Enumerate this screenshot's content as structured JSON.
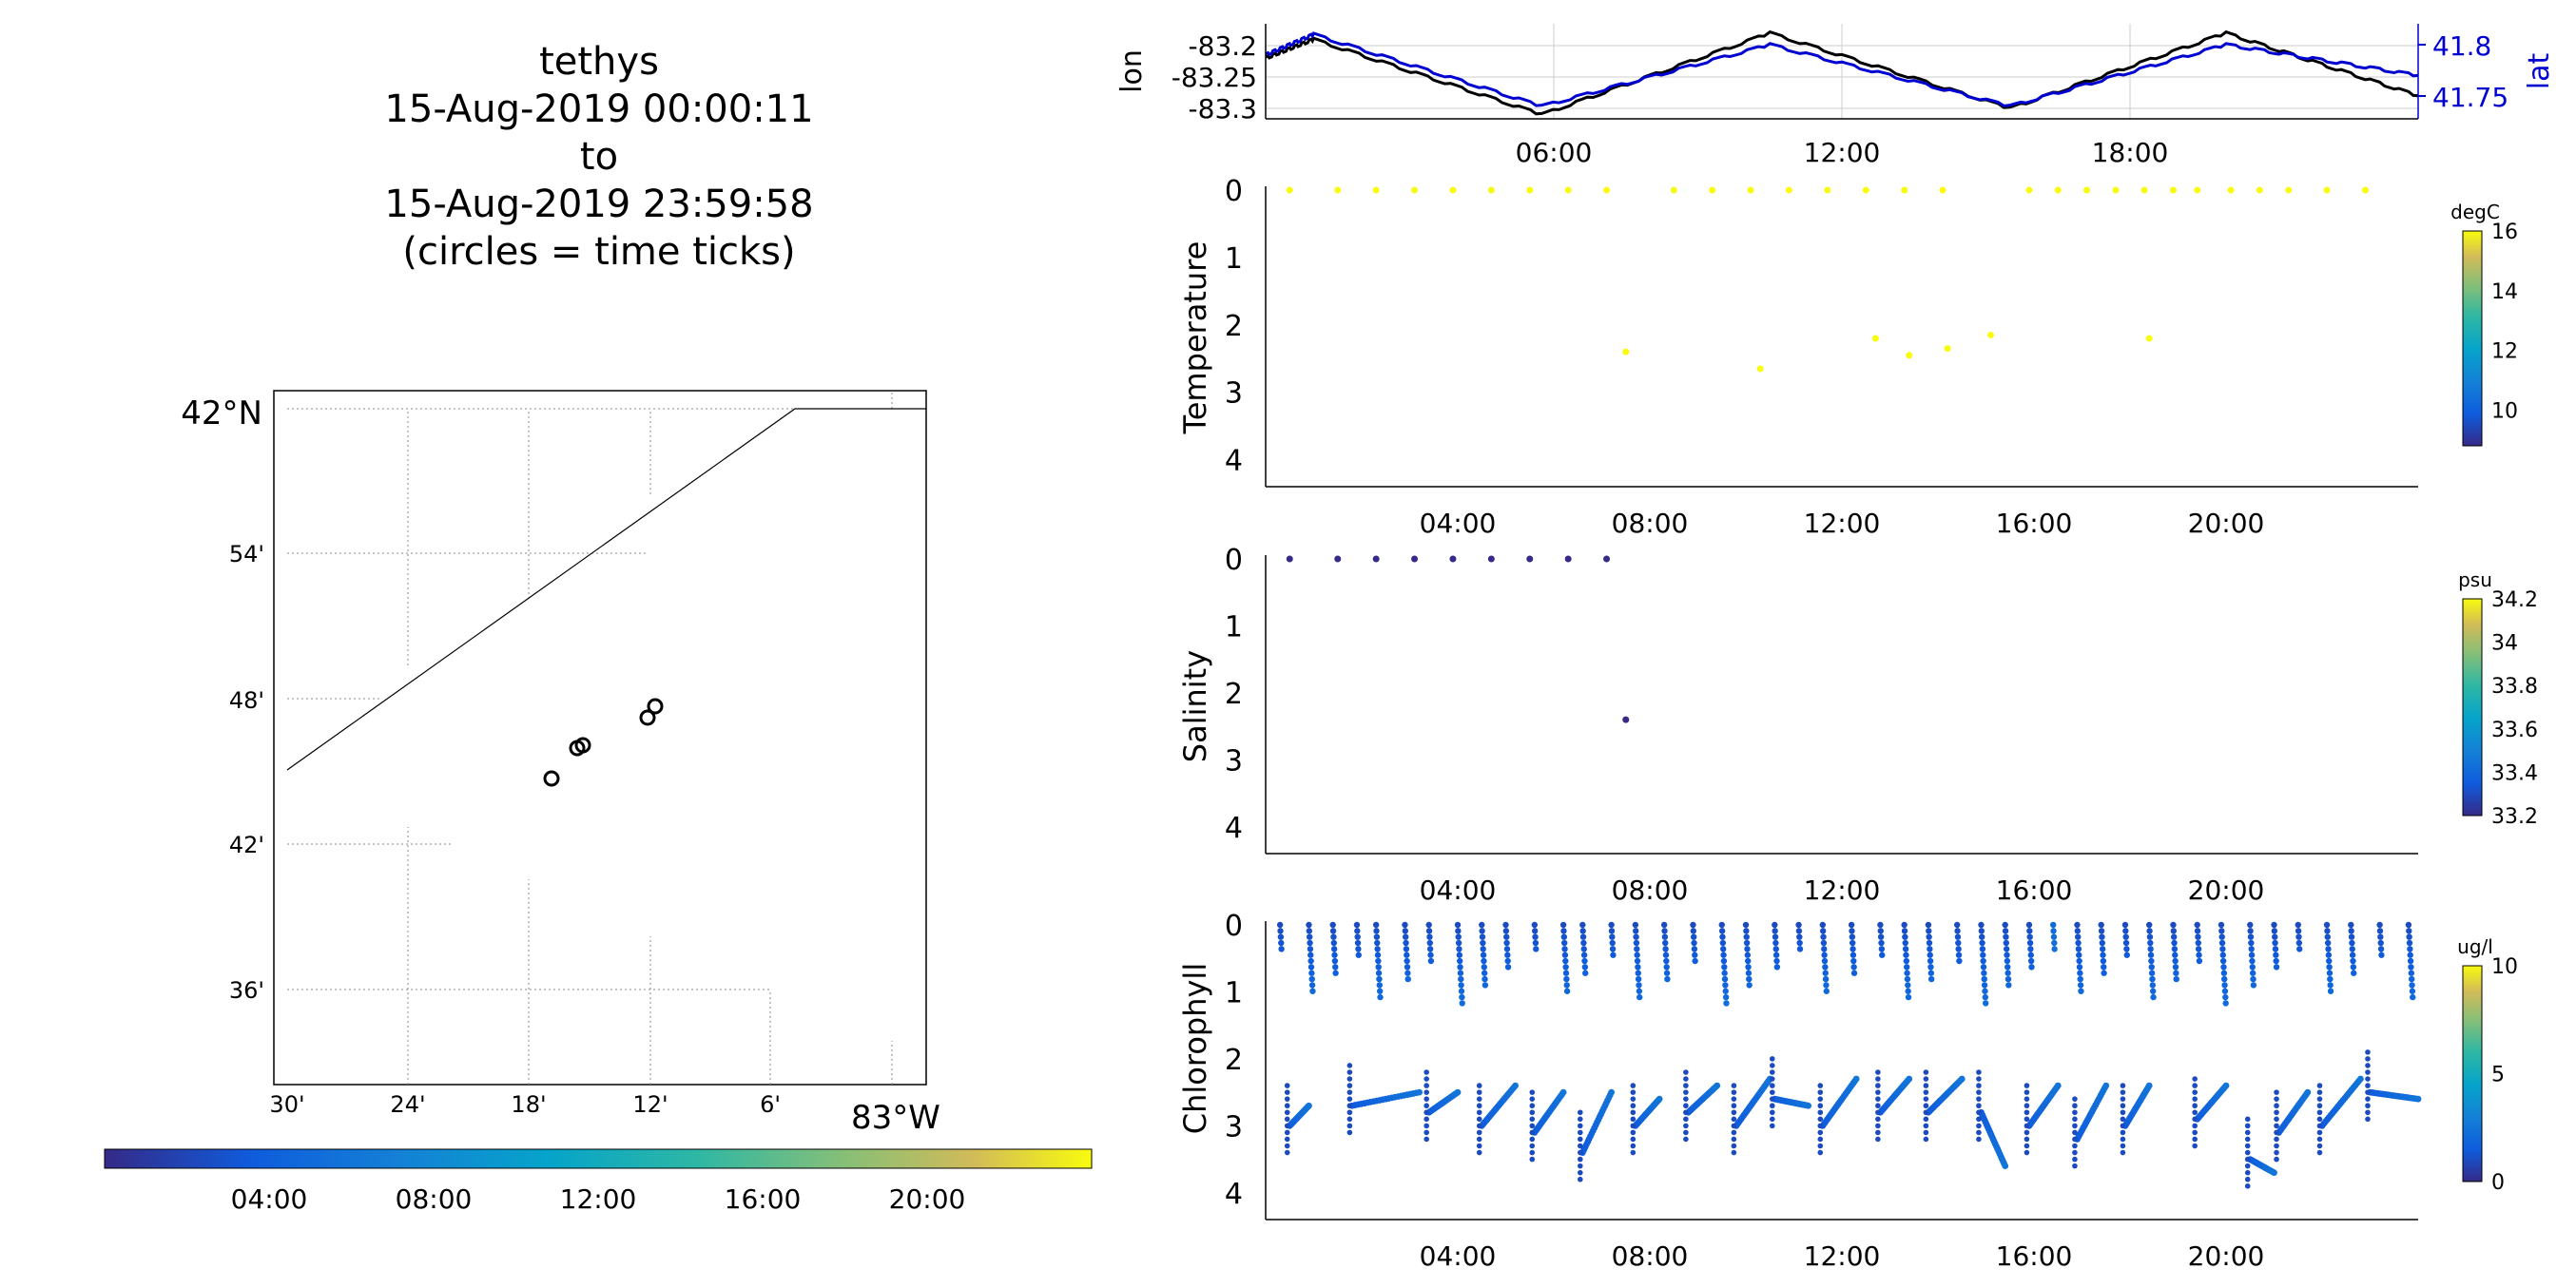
{
  "title_lines": [
    "tethys",
    "15-Aug-2019 00:00:11",
    "to",
    "15-Aug-2019 23:59:58",
    "(circles = time ticks)"
  ],
  "map": {
    "lat_labels": [
      "42°N",
      "54'",
      "48'",
      "42'",
      "36'"
    ],
    "lon_labels": [
      "30'",
      "24'",
      "18'",
      "12'",
      "6'",
      "83°W"
    ],
    "colorbar_ticks": [
      "04:00",
      "08:00",
      "12:00",
      "16:00",
      "20:00"
    ],
    "colorbar_colormap": "parula",
    "circles": [
      {
        "lon": -83.311,
        "lat": 41.746
      },
      {
        "lon": -83.305,
        "lat": 41.767
      },
      {
        "lon": -83.302,
        "lat": 41.769
      },
      {
        "lon": -83.206,
        "lat": 41.784
      },
      {
        "lon": -83.202,
        "lat": 41.791
      }
    ]
  },
  "chart_data": [
    {
      "type": "line",
      "name": "track",
      "xlabel": "",
      "ylabel": "lon",
      "ylabel_right": "lat",
      "xlim": [
        "00:00",
        "24:00"
      ],
      "x_ticks": [
        "06:00",
        "12:00",
        "18:00"
      ],
      "y_left_ticks": [
        "-83.2",
        "-83.25",
        "-83.3"
      ],
      "y_right_ticks": [
        "41.8",
        "41.75"
      ],
      "series": [
        {
          "name": "lon",
          "color": "#000000",
          "x": [
            "00:00",
            "01:00",
            "05:45",
            "10:30",
            "15:30",
            "20:00",
            "24:00"
          ],
          "y": [
            -83.22,
            -83.19,
            -83.31,
            -83.18,
            -83.3,
            -83.18,
            -83.28
          ]
        },
        {
          "name": "lat",
          "color": "#0000d0",
          "x": [
            "00:00",
            "01:00",
            "05:45",
            "10:30",
            "15:30",
            "20:00",
            "24:00"
          ],
          "y": [
            41.79,
            41.81,
            41.74,
            41.8,
            41.74,
            41.8,
            41.77
          ]
        }
      ]
    },
    {
      "type": "scatter",
      "name": "temperature",
      "xlabel": "",
      "ylabel": "Temperature",
      "colorbar_label": "degC",
      "colorbar_ticks": [
        "16",
        "14",
        "12",
        "10"
      ],
      "clim": [
        8.5,
        16
      ],
      "ylim": [
        4.4,
        0
      ],
      "y_ticks": [
        "0",
        "1",
        "2",
        "3",
        "4"
      ],
      "x_ticks": [
        "04:00",
        "08:00",
        "12:00",
        "16:00",
        "20:00"
      ],
      "points": [
        {
          "t": 0.5,
          "depth": 0,
          "value": 16
        },
        {
          "t": 1.5,
          "depth": 0,
          "value": 16
        },
        {
          "t": 2.3,
          "depth": 0,
          "value": 16
        },
        {
          "t": 3.1,
          "depth": 0,
          "value": 16
        },
        {
          "t": 3.9,
          "depth": 0,
          "value": 16
        },
        {
          "t": 4.7,
          "depth": 0,
          "value": 16
        },
        {
          "t": 5.5,
          "depth": 0,
          "value": 16
        },
        {
          "t": 6.3,
          "depth": 0,
          "value": 16
        },
        {
          "t": 7.1,
          "depth": 0,
          "value": 16
        },
        {
          "t": 7.5,
          "depth": 2.4,
          "value": 16
        },
        {
          "t": 8.5,
          "depth": 0,
          "value": 16
        },
        {
          "t": 9.3,
          "depth": 0,
          "value": 16
        },
        {
          "t": 10.1,
          "depth": 0,
          "value": 16
        },
        {
          "t": 10.3,
          "depth": 2.65,
          "value": 16
        },
        {
          "t": 10.9,
          "depth": 0,
          "value": 16
        },
        {
          "t": 11.7,
          "depth": 0,
          "value": 16
        },
        {
          "t": 12.5,
          "depth": 0,
          "value": 16
        },
        {
          "t": 12.7,
          "depth": 2.2,
          "value": 16
        },
        {
          "t": 13.3,
          "depth": 0,
          "value": 16
        },
        {
          "t": 13.4,
          "depth": 2.45,
          "value": 16
        },
        {
          "t": 14.1,
          "depth": 0,
          "value": 16
        },
        {
          "t": 14.2,
          "depth": 2.35,
          "value": 16
        },
        {
          "t": 15.1,
          "depth": 2.15,
          "value": 16
        },
        {
          "t": 15.9,
          "depth": 0,
          "value": 16
        },
        {
          "t": 16.5,
          "depth": 0,
          "value": 16
        },
        {
          "t": 17.1,
          "depth": 0,
          "value": 16
        },
        {
          "t": 17.7,
          "depth": 0,
          "value": 16
        },
        {
          "t": 18.3,
          "depth": 0,
          "value": 16
        },
        {
          "t": 18.4,
          "depth": 2.2,
          "value": 16
        },
        {
          "t": 18.9,
          "depth": 0,
          "value": 16
        },
        {
          "t": 19.4,
          "depth": 0,
          "value": 16
        },
        {
          "t": 20.1,
          "depth": 0,
          "value": 16
        },
        {
          "t": 20.7,
          "depth": 0,
          "value": 16
        },
        {
          "t": 21.3,
          "depth": 0,
          "value": 16
        },
        {
          "t": 22.1,
          "depth": 0,
          "value": 16
        },
        {
          "t": 22.9,
          "depth": 0,
          "value": 16
        }
      ]
    },
    {
      "type": "scatter",
      "name": "salinity",
      "xlabel": "",
      "ylabel": "Salinity",
      "colorbar_label": "psu",
      "colorbar_ticks": [
        "34.2",
        "34",
        "33.8",
        "33.6",
        "33.4",
        "33.2"
      ],
      "clim": [
        33.2,
        34.2
      ],
      "ylim": [
        4.4,
        0
      ],
      "y_ticks": [
        "0",
        "1",
        "2",
        "3",
        "4"
      ],
      "x_ticks": [
        "04:00",
        "08:00",
        "12:00",
        "16:00",
        "20:00"
      ],
      "points": [
        {
          "t": 0.5,
          "depth": 0,
          "value": 33.2
        },
        {
          "t": 1.5,
          "depth": 0,
          "value": 33.2
        },
        {
          "t": 2.3,
          "depth": 0,
          "value": 33.2
        },
        {
          "t": 3.1,
          "depth": 0,
          "value": 33.2
        },
        {
          "t": 3.9,
          "depth": 0,
          "value": 33.2
        },
        {
          "t": 4.7,
          "depth": 0,
          "value": 33.2
        },
        {
          "t": 5.5,
          "depth": 0,
          "value": 33.2
        },
        {
          "t": 6.3,
          "depth": 0,
          "value": 33.2
        },
        {
          "t": 7.1,
          "depth": 0,
          "value": 33.2
        },
        {
          "t": 7.5,
          "depth": 2.4,
          "value": 33.2
        }
      ]
    },
    {
      "type": "scatter",
      "name": "chlorophyll",
      "xlabel": "",
      "ylabel": "Chlorophyll",
      "colorbar_label": "ug/l",
      "colorbar_ticks": [
        "10",
        "5",
        "0"
      ],
      "clim": [
        0,
        10
      ],
      "ylim": [
        4.4,
        0
      ],
      "y_ticks": [
        "0",
        "1",
        "2",
        "3",
        "4"
      ],
      "x_ticks": [
        "04:00",
        "08:00",
        "12:00",
        "16:00",
        "20:00"
      ],
      "profile_times": [
        0.3,
        0.9,
        1.4,
        1.9,
        2.3,
        2.9,
        3.4,
        4.0,
        4.5,
        5.0,
        5.6,
        6.2,
        6.6,
        7.2,
        7.7,
        8.3,
        8.9,
        9.5,
        10.0,
        10.6,
        11.1,
        11.6,
        12.2,
        12.8,
        13.3,
        13.8,
        14.4,
        14.9,
        15.4,
        15.9,
        16.4,
        16.9,
        17.4,
        17.9,
        18.4,
        18.9,
        19.4,
        19.9,
        20.5,
        21.0,
        21.5,
        22.1,
        22.6,
        23.2,
        23.8
      ],
      "profile_values": [
        1,
        1,
        1,
        1,
        1,
        1,
        1,
        1,
        1,
        1,
        1,
        1,
        1,
        1,
        1,
        1,
        1,
        1,
        1,
        1,
        1,
        1,
        1,
        1,
        1,
        1,
        1,
        1,
        1,
        1,
        2,
        1,
        1,
        1,
        1,
        1,
        1,
        1,
        1,
        1,
        1,
        1,
        1,
        1,
        1
      ],
      "deep_segments": [
        {
          "t0": 0.5,
          "d0": 3.0,
          "t1": 0.9,
          "d1": 2.7
        },
        {
          "t0": 1.8,
          "d0": 2.7,
          "t1": 3.2,
          "d1": 2.5
        },
        {
          "t0": 3.4,
          "d0": 2.8,
          "t1": 4.0,
          "d1": 2.5
        },
        {
          "t0": 4.5,
          "d0": 3.0,
          "t1": 5.2,
          "d1": 2.4
        },
        {
          "t0": 5.6,
          "d0": 3.1,
          "t1": 6.2,
          "d1": 2.5
        },
        {
          "t0": 6.6,
          "d0": 3.4,
          "t1": 7.2,
          "d1": 2.5
        },
        {
          "t0": 7.7,
          "d0": 3.0,
          "t1": 8.2,
          "d1": 2.6
        },
        {
          "t0": 8.8,
          "d0": 2.8,
          "t1": 9.4,
          "d1": 2.4
        },
        {
          "t0": 9.8,
          "d0": 3.0,
          "t1": 10.5,
          "d1": 2.3
        },
        {
          "t0": 10.6,
          "d0": 2.6,
          "t1": 11.3,
          "d1": 2.7
        },
        {
          "t0": 11.6,
          "d0": 3.0,
          "t1": 12.3,
          "d1": 2.3
        },
        {
          "t0": 12.8,
          "d0": 2.8,
          "t1": 13.4,
          "d1": 2.3
        },
        {
          "t0": 13.8,
          "d0": 2.8,
          "t1": 14.5,
          "d1": 2.3
        },
        {
          "t0": 14.9,
          "d0": 2.8,
          "t1": 15.4,
          "d1": 3.6
        },
        {
          "t0": 15.9,
          "d0": 3.0,
          "t1": 16.5,
          "d1": 2.4
        },
        {
          "t0": 16.9,
          "d0": 3.2,
          "t1": 17.5,
          "d1": 2.4
        },
        {
          "t0": 17.9,
          "d0": 3.0,
          "t1": 18.4,
          "d1": 2.4
        },
        {
          "t0": 19.4,
          "d0": 2.9,
          "t1": 20.0,
          "d1": 2.4
        },
        {
          "t0": 20.5,
          "d0": 3.5,
          "t1": 21.0,
          "d1": 3.7
        },
        {
          "t0": 21.1,
          "d0": 3.1,
          "t1": 21.7,
          "d1": 2.5
        },
        {
          "t0": 22.0,
          "d0": 3.0,
          "t1": 22.8,
          "d1": 2.3
        },
        {
          "t0": 23.0,
          "d0": 2.5,
          "t1": 24.0,
          "d1": 2.6
        }
      ]
    }
  ]
}
